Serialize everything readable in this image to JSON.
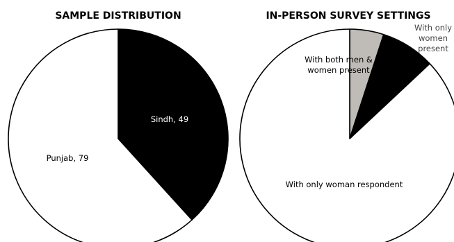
{
  "chart_data": [
    {
      "type": "pie",
      "title": "SAMPLE DISTRIBUTION",
      "slices": [
        {
          "label": "Sindh, 49",
          "value": 49,
          "color": "#000000",
          "text_color": "#ffffff"
        },
        {
          "label": "Punjab, 79",
          "value": 79,
          "color": "#ffffff",
          "text_color": "#000000"
        }
      ]
    },
    {
      "type": "pie",
      "title": "IN-PERSON SURVEY SETTINGS",
      "slices": [
        {
          "label": "With both men & women present",
          "value": 5,
          "color": "#bfbbb6",
          "text_color": "#000000"
        },
        {
          "label": "With only women present",
          "value": 8,
          "color": "#000000",
          "text_color": "#444444"
        },
        {
          "label": "With only woman respondent",
          "value": 87,
          "color": "#ffffff",
          "text_color": "#000000"
        }
      ]
    }
  ]
}
